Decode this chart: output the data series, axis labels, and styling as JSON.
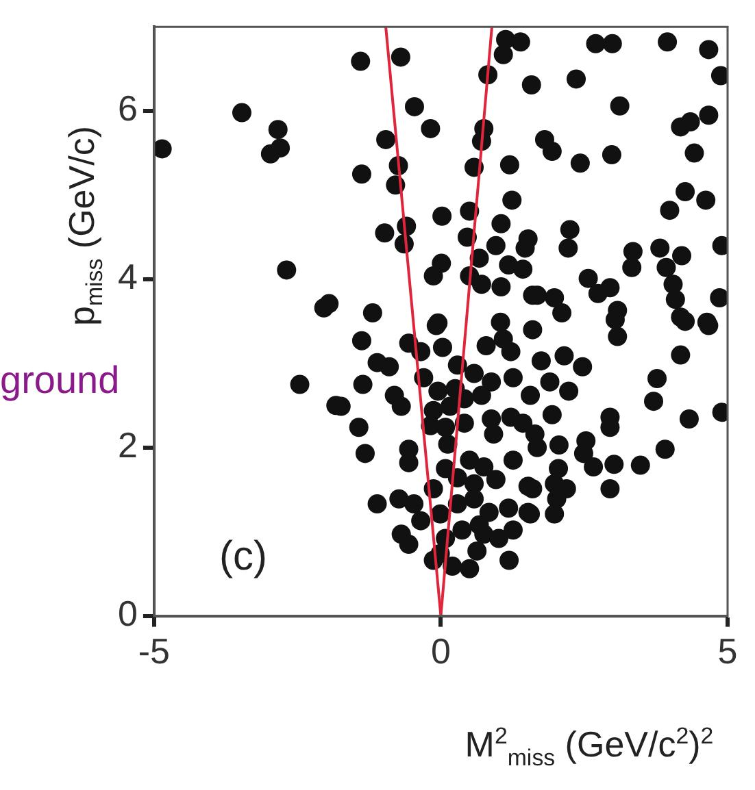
{
  "chart_data": {
    "type": "scatter",
    "xlabel": "M$^{2}$$_{miss}$ (GeV/c$^{2}$)$^{2}$",
    "ylabel": "p$_{miss}$ (GeV/c)",
    "annotations": [
      "(c)",
      "ground"
    ],
    "xlim": [
      -5,
      5
    ],
    "ylim": [
      0,
      7
    ],
    "xticks": [
      -5,
      0,
      5
    ],
    "yticks": [
      0,
      2,
      4,
      6
    ],
    "grid": false,
    "legend": false,
    "marker": "circle",
    "series": [
      {
        "color": "#111111",
        "x": [
          -3.47,
          -2.84,
          -2.97,
          -2.8,
          -4.86,
          -2.69,
          -2.04,
          -1.4,
          -0.7,
          -0.46,
          -0.18,
          -0.96,
          -0.74,
          -0.79,
          -1.38,
          0.82,
          1.58,
          1.13,
          1.39,
          1.09,
          0.75,
          0.71,
          0.58,
          1.2,
          1.24,
          0.02,
          0.5,
          0.46,
          -0.98,
          -0.6,
          -0.64,
          1.05,
          0.96,
          1.52,
          0.01,
          0.67,
          -0.13,
          0.5,
          0.71,
          1.18,
          1.05,
          1.43,
          1.6,
          -1.19,
          -1.95,
          -0.05,
          1.04,
          2.7,
          2.99,
          3.95,
          4.67,
          4.88,
          2.36,
          3.12,
          1.81,
          1.94,
          2.43,
          2.98,
          4.18,
          4.35,
          4.67,
          4.42,
          4.26,
          4.62,
          3.99,
          2.25,
          2.22,
          3.35,
          3.33,
          3.82,
          3.93,
          4.2,
          4.9,
          2.57,
          2.95,
          2.74,
          1.68,
          1.98,
          2.11,
          3.08,
          4.05,
          4.09,
          4.18,
          4.86,
          4.64,
          1.47,
          -2.46,
          -1.83,
          -1.38,
          -1.11,
          -0.9,
          -1.36,
          -1.74,
          -0.81,
          -0.69,
          -1.43,
          -1.32,
          -0.08,
          -0.56,
          -0.35,
          0.03,
          0.79,
          1.09,
          1.22,
          1.6,
          0.29,
          -0.3,
          -0.05,
          0.25,
          0.58,
          0.88,
          1.26,
          1.56,
          -0.13,
          0.16,
          0.41,
          0.88,
          0.92,
          1.22,
          1.43,
          1.64,
          1.68,
          0.12,
          -0.56,
          -0.56,
          0.08,
          0.5,
          0.75,
          1.26,
          1.52,
          0.96,
          0.58,
          0.29,
          -0.13,
          -1.11,
          -0.73,
          -0.47,
          -0.35,
          -0.01,
          0.29,
          0.58,
          0.84,
          1.18,
          1.52,
          1.26,
          0.67,
          0.37,
          -0.69,
          -0.56,
          0.08,
          -0.01,
          0.63,
          -0.13,
          0.2,
          0.5,
          1.19,
          0.75,
          1.01,
          3.04,
          3.08,
          4.26,
          4.67,
          4.18,
          1.75,
          2.15,
          2.47,
          1.9,
          2.23,
          3.77,
          3.71,
          1.94,
          2.95,
          2.95,
          4.33,
          4.9,
          2.06,
          2.53,
          2.49,
          2.66,
          3.02,
          3.48,
          3.91,
          2.95,
          2.05,
          1.6,
          1.98,
          2.19,
          2.02,
          1.56,
          1.98,
          0.41,
          0.71,
          0.08,
          -0.18
        ],
        "values": [
          5.98,
          5.78,
          5.49,
          5.56,
          5.55,
          4.11,
          3.66,
          6.59,
          6.64,
          6.05,
          5.79,
          5.66,
          5.35,
          5.12,
          5.25,
          6.43,
          6.31,
          6.85,
          6.82,
          6.67,
          5.79,
          5.64,
          5.33,
          5.36,
          4.94,
          4.75,
          4.81,
          4.5,
          4.55,
          4.63,
          4.42,
          4.66,
          4.4,
          4.48,
          4.19,
          4.25,
          4.04,
          4.04,
          3.94,
          4.17,
          3.91,
          4.12,
          3.81,
          3.6,
          3.71,
          3.48,
          3.49,
          6.8,
          6.8,
          6.82,
          6.73,
          6.42,
          6.38,
          6.06,
          5.66,
          5.52,
          5.38,
          5.48,
          5.81,
          5.87,
          5.95,
          5.5,
          5.04,
          4.94,
          4.82,
          4.59,
          4.37,
          4.33,
          4.14,
          4.37,
          4.14,
          4.28,
          4.4,
          4.01,
          3.9,
          3.83,
          3.81,
          3.78,
          3.6,
          3.63,
          3.94,
          3.76,
          3.55,
          3.78,
          3.49,
          4.37,
          2.75,
          2.5,
          3.27,
          3.01,
          2.96,
          2.75,
          2.49,
          2.62,
          2.49,
          2.24,
          1.93,
          3.45,
          3.24,
          3.14,
          3.19,
          3.21,
          3.29,
          3.14,
          3.4,
          2.98,
          2.83,
          2.67,
          2.7,
          2.88,
          2.78,
          2.83,
          2.62,
          2.44,
          2.49,
          2.29,
          2.34,
          2.16,
          2.36,
          2.29,
          2.16,
          2.0,
          2.04,
          1.98,
          1.82,
          1.75,
          1.85,
          1.77,
          1.85,
          1.54,
          1.62,
          1.57,
          1.64,
          1.51,
          1.33,
          1.39,
          1.33,
          1.13,
          1.21,
          1.33,
          1.39,
          1.23,
          1.28,
          1.23,
          1.02,
          1.08,
          1.02,
          0.97,
          0.85,
          0.92,
          0.74,
          0.77,
          0.66,
          0.59,
          0.56,
          0.66,
          0.97,
          0.92,
          3.52,
          3.32,
          3.5,
          3.45,
          3.1,
          3.03,
          3.09,
          2.96,
          2.78,
          2.67,
          2.82,
          2.55,
          2.39,
          2.36,
          2.24,
          2.34,
          2.42,
          2.03,
          2.08,
          1.93,
          1.77,
          1.8,
          1.79,
          1.98,
          1.51,
          1.75,
          1.51,
          1.57,
          1.51,
          1.39,
          1.21,
          1.21,
          2.58,
          2.62,
          2.24,
          2.26
        ]
      },
      {
        "type": "line",
        "color": "#e0263c",
        "marker": "none",
        "x": [
          0,
          -0.96
        ],
        "values": [
          0,
          7
        ]
      },
      {
        "type": "line",
        "color": "#e0263c",
        "marker": "none",
        "x": [
          0,
          0.89
        ],
        "values": [
          0,
          7
        ]
      }
    ]
  }
}
